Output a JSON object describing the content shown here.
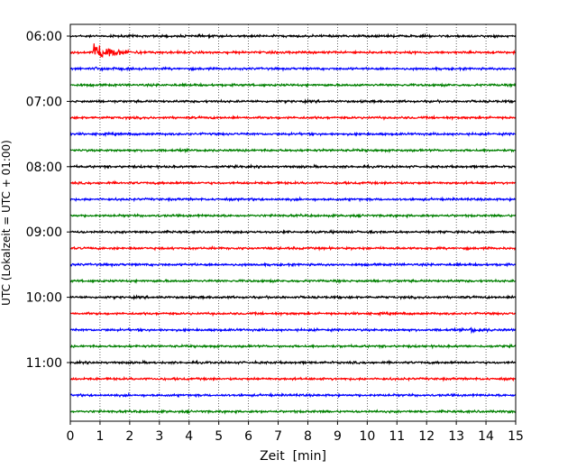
{
  "chart_data": {
    "type": "line",
    "title": "",
    "xlabel": "Zeit  [min]",
    "ylabel": "UTC (Lokalzeit = UTC + 01:00)",
    "xlim": [
      0,
      15
    ],
    "x_ticks": [
      "0",
      "1",
      "2",
      "3",
      "4",
      "5",
      "6",
      "7",
      "8",
      "9",
      "10",
      "11",
      "12",
      "13",
      "14",
      "15"
    ],
    "y_ticks": [
      {
        "label": "06:00",
        "trace": 0
      },
      {
        "label": "07:00",
        "trace": 4
      },
      {
        "label": "08:00",
        "trace": 8
      },
      {
        "label": "09:00",
        "trace": 12
      },
      {
        "label": "10:00",
        "trace": 16
      },
      {
        "label": "11:00",
        "trace": 20
      }
    ],
    "trace_interval_min": 15,
    "trace_colors": [
      "#000000",
      "#ff0000",
      "#0000ff",
      "#008000"
    ],
    "trace_count": 24,
    "grid_x": true,
    "events": [
      {
        "trace": 1,
        "minute": 0.8,
        "amplitude": 12.0,
        "decay": 0.45
      },
      {
        "trace": 2,
        "minute": 0.85,
        "amplitude": 1.2,
        "decay": 0.5
      },
      {
        "trace": 13,
        "minute": 13.4,
        "amplitude": 0.0,
        "decay": 0.3
      },
      {
        "trace": 18,
        "minute": 13.5,
        "amplitude": 2.0,
        "decay": 0.35
      }
    ]
  }
}
